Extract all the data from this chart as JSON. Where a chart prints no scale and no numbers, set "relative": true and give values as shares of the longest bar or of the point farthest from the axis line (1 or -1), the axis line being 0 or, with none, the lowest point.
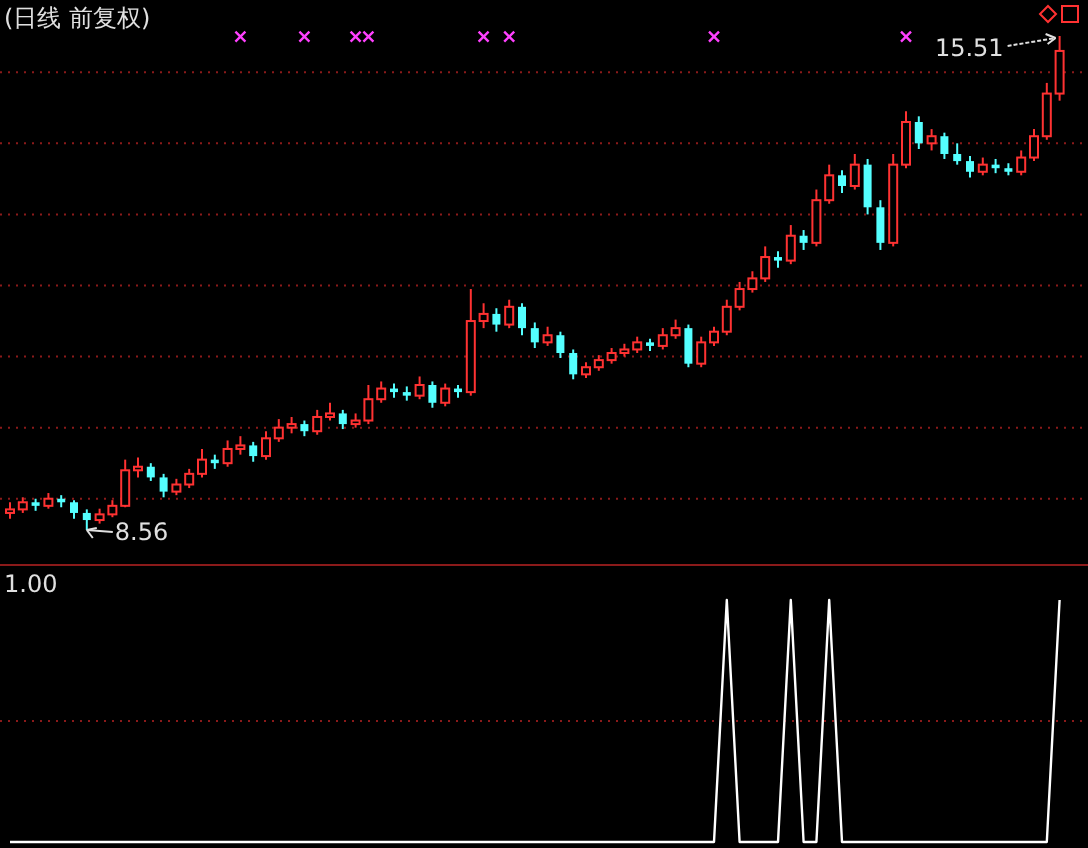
{
  "chart_data": [
    {
      "type": "candlestick",
      "title": "(日线 前复权)",
      "grid": true,
      "yticks": [
        {
          "value": 9,
          "label": null
        },
        {
          "value": 10,
          "label": null
        },
        {
          "value": 11,
          "label": null
        },
        {
          "value": 12,
          "label": null
        },
        {
          "value": 13,
          "label": null
        },
        {
          "value": 14,
          "label": null
        },
        {
          "value": 15,
          "label": null
        }
      ],
      "categories": [
        null,
        null,
        null,
        null,
        null,
        null,
        null,
        null,
        null,
        null,
        null,
        null,
        null,
        null,
        null,
        null,
        null,
        null,
        null,
        null,
        null,
        null,
        null,
        null,
        null,
        null,
        null,
        null,
        null,
        null,
        null,
        null,
        null,
        null,
        null,
        null,
        null,
        null,
        null,
        null,
        null,
        null,
        null,
        null,
        null,
        null,
        null,
        null,
        null,
        null,
        null,
        null,
        null,
        null,
        null,
        null,
        null,
        null,
        null,
        null,
        null,
        null,
        null,
        null,
        null,
        null,
        null,
        null,
        null,
        null,
        null,
        null,
        null,
        null,
        null,
        null,
        null,
        null,
        null,
        null,
        null,
        null,
        null
      ],
      "ohlc": [
        [
          8.8,
          8.95,
          8.72,
          8.85
        ],
        [
          8.85,
          9.02,
          8.8,
          8.95
        ],
        [
          8.95,
          9.0,
          8.83,
          8.9
        ],
        [
          8.9,
          9.08,
          8.86,
          9.0
        ],
        [
          9.0,
          9.05,
          8.88,
          8.95
        ],
        [
          8.95,
          8.98,
          8.72,
          8.8
        ],
        [
          8.8,
          8.85,
          8.56,
          8.7
        ],
        [
          8.7,
          8.86,
          8.65,
          8.78
        ],
        [
          8.78,
          8.98,
          8.74,
          8.9
        ],
        [
          8.9,
          9.55,
          8.88,
          9.4
        ],
        [
          9.4,
          9.58,
          9.3,
          9.45
        ],
        [
          9.45,
          9.5,
          9.25,
          9.3
        ],
        [
          9.3,
          9.35,
          9.02,
          9.1
        ],
        [
          9.1,
          9.28,
          9.05,
          9.2
        ],
        [
          9.2,
          9.42,
          9.15,
          9.35
        ],
        [
          9.35,
          9.7,
          9.3,
          9.55
        ],
        [
          9.55,
          9.62,
          9.42,
          9.5
        ],
        [
          9.5,
          9.82,
          9.45,
          9.7
        ],
        [
          9.7,
          9.88,
          9.62,
          9.75
        ],
        [
          9.75,
          9.8,
          9.52,
          9.6
        ],
        [
          9.6,
          9.95,
          9.55,
          9.85
        ],
        [
          9.85,
          10.12,
          9.8,
          10.0
        ],
        [
          10.0,
          10.15,
          9.92,
          10.05
        ],
        [
          10.05,
          10.1,
          9.88,
          9.95
        ],
        [
          9.95,
          10.25,
          9.9,
          10.15
        ],
        [
          10.15,
          10.35,
          10.1,
          10.2
        ],
        [
          10.2,
          10.25,
          9.98,
          10.05
        ],
        [
          10.05,
          10.2,
          10.0,
          10.1
        ],
        [
          10.1,
          10.6,
          10.05,
          10.4
        ],
        [
          10.4,
          10.65,
          10.35,
          10.55
        ],
        [
          10.55,
          10.62,
          10.42,
          10.5
        ],
        [
          10.5,
          10.58,
          10.38,
          10.45
        ],
        [
          10.45,
          10.72,
          10.4,
          10.6
        ],
        [
          10.6,
          10.65,
          10.28,
          10.35
        ],
        [
          10.35,
          10.62,
          10.3,
          10.55
        ],
        [
          10.55,
          10.6,
          10.42,
          10.5
        ],
        [
          10.5,
          11.95,
          10.45,
          11.5
        ],
        [
          11.5,
          11.75,
          11.4,
          11.6
        ],
        [
          11.6,
          11.68,
          11.35,
          11.45
        ],
        [
          11.45,
          11.8,
          11.4,
          11.7
        ],
        [
          11.7,
          11.75,
          11.3,
          11.4
        ],
        [
          11.4,
          11.48,
          11.12,
          11.2
        ],
        [
          11.2,
          11.42,
          11.15,
          11.3
        ],
        [
          11.3,
          11.35,
          10.98,
          11.05
        ],
        [
          11.05,
          11.1,
          10.68,
          10.75
        ],
        [
          10.75,
          10.92,
          10.7,
          10.85
        ],
        [
          10.85,
          11.02,
          10.8,
          10.95
        ],
        [
          10.95,
          11.12,
          10.9,
          11.05
        ],
        [
          11.05,
          11.18,
          11.0,
          11.1
        ],
        [
          11.1,
          11.28,
          11.05,
          11.2
        ],
        [
          11.2,
          11.25,
          11.08,
          11.15
        ],
        [
          11.15,
          11.4,
          11.1,
          11.3
        ],
        [
          11.3,
          11.52,
          11.25,
          11.4
        ],
        [
          11.4,
          11.45,
          10.85,
          10.9
        ],
        [
          10.9,
          11.28,
          10.85,
          11.2
        ],
        [
          11.2,
          11.42,
          11.15,
          11.35
        ],
        [
          11.35,
          11.8,
          11.3,
          11.7
        ],
        [
          11.7,
          12.05,
          11.65,
          11.95
        ],
        [
          11.95,
          12.2,
          11.9,
          12.1
        ],
        [
          12.1,
          12.55,
          12.05,
          12.4
        ],
        [
          12.4,
          12.48,
          12.25,
          12.35
        ],
        [
          12.35,
          12.85,
          12.3,
          12.7
        ],
        [
          12.7,
          12.78,
          12.5,
          12.6
        ],
        [
          12.6,
          13.35,
          12.55,
          13.2
        ],
        [
          13.2,
          13.7,
          13.15,
          13.55
        ],
        [
          13.55,
          13.62,
          13.3,
          13.4
        ],
        [
          13.4,
          13.85,
          13.35,
          13.7
        ],
        [
          13.7,
          13.78,
          13.0,
          13.1
        ],
        [
          13.1,
          13.2,
          12.5,
          12.6
        ],
        [
          12.6,
          13.85,
          12.55,
          13.7
        ],
        [
          13.7,
          14.45,
          13.65,
          14.3
        ],
        [
          14.3,
          14.38,
          13.92,
          14.0
        ],
        [
          14.0,
          14.2,
          13.9,
          14.1
        ],
        [
          14.1,
          14.15,
          13.78,
          13.85
        ],
        [
          13.85,
          14.0,
          13.7,
          13.75
        ],
        [
          13.75,
          13.82,
          13.52,
          13.6
        ],
        [
          13.6,
          13.8,
          13.55,
          13.7
        ],
        [
          13.7,
          13.78,
          13.58,
          13.65
        ],
        [
          13.65,
          13.72,
          13.55,
          13.6
        ],
        [
          13.6,
          13.9,
          13.55,
          13.8
        ],
        [
          13.8,
          14.2,
          13.75,
          14.1
        ],
        [
          14.1,
          14.85,
          14.05,
          14.7
        ],
        [
          14.7,
          15.51,
          14.6,
          15.3
        ]
      ],
      "colors": [
        "#ff3232",
        "#ff3232",
        "#54ffff",
        "#ff3232",
        "#54ffff",
        "#54ffff",
        "#54ffff",
        "#ff3232",
        "#ff3232",
        "#ff3232",
        "#ff3232",
        "#54ffff",
        "#54ffff",
        "#ff3232",
        "#ff3232",
        "#ff3232",
        "#54ffff",
        "#ff3232",
        "#ff3232",
        "#54ffff",
        "#ff3232",
        "#ff3232",
        "#ff3232",
        "#54ffff",
        "#ff3232",
        "#ff3232",
        "#54ffff",
        "#ff3232",
        "#ff3232",
        "#ff3232",
        "#54ffff",
        "#54ffff",
        "#ff3232",
        "#54ffff",
        "#ff3232",
        "#54ffff",
        "#ff3232",
        "#ff3232",
        "#54ffff",
        "#ff3232",
        "#54ffff",
        "#54ffff",
        "#ff3232",
        "#54ffff",
        "#54ffff",
        "#ff3232",
        "#ff3232",
        "#ff3232",
        "#ff3232",
        "#ff3232",
        "#54ffff",
        "#ff3232",
        "#ff3232",
        "#54ffff",
        "#ff3232",
        "#ff3232",
        "#ff3232",
        "#ff3232",
        "#ff3232",
        "#ff3232",
        "#54ffff",
        "#ff3232",
        "#54ffff",
        "#ff3232",
        "#ff3232",
        "#54ffff",
        "#ff3232",
        "#54ffff",
        "#54ffff",
        "#ff3232",
        "#ff3232",
        "#54ffff",
        "#ff3232",
        "#54ffff",
        "#54ffff",
        "#54ffff",
        "#ff3232",
        "#54ffff",
        "#54ffff",
        "#ff3232",
        "#ff3232",
        "#ff3232",
        "#ff3232"
      ],
      "series": [
        {
          "type": "scatter",
          "color": "#ff40ff",
          "marker": "cross",
          "values": [
            null,
            null,
            null,
            null,
            null,
            null,
            null,
            null,
            null,
            null,
            null,
            null,
            null,
            null,
            null,
            null,
            null,
            null,
            15.5,
            null,
            null,
            null,
            null,
            15.5,
            null,
            null,
            null,
            15.5,
            15.5,
            null,
            null,
            null,
            null,
            null,
            null,
            null,
            null,
            15.5,
            null,
            15.5,
            null,
            null,
            null,
            null,
            null,
            null,
            null,
            null,
            null,
            null,
            null,
            null,
            null,
            null,
            null,
            15.5,
            null,
            null,
            null,
            null,
            null,
            null,
            null,
            null,
            null,
            null,
            null,
            null,
            null,
            null,
            15.5,
            null,
            null,
            null,
            null,
            null,
            null,
            null,
            null,
            null,
            null,
            null,
            null
          ]
        }
      ],
      "annotations": [
        "15.51",
        "8.56"
      ]
    },
    {
      "type": "line",
      "title": "1.00",
      "relative": true,
      "ref_lines": [
        {
          "axis": "y",
          "value": 0.5,
          "color": "#8b1a1a",
          "line_style": "dotted"
        }
      ],
      "categories": [
        null,
        null,
        null,
        null,
        null,
        null,
        null,
        null,
        null,
        null,
        null,
        null,
        null,
        null,
        null,
        null,
        null,
        null,
        null,
        null,
        null,
        null,
        null,
        null,
        null,
        null,
        null,
        null,
        null,
        null,
        null,
        null,
        null,
        null,
        null,
        null,
        null,
        null,
        null,
        null,
        null,
        null,
        null,
        null,
        null,
        null,
        null,
        null,
        null,
        null,
        null,
        null,
        null,
        null,
        null,
        null,
        null,
        null,
        null,
        null,
        null,
        null,
        null,
        null,
        null,
        null,
        null,
        null,
        null,
        null,
        null,
        null,
        null,
        null,
        null,
        null,
        null,
        null,
        null,
        null,
        null,
        null,
        null
      ],
      "series": [
        {
          "color": "#ffffff",
          "values": [
            0,
            0,
            0,
            0,
            0,
            0,
            0,
            0,
            0,
            0,
            0,
            0,
            0,
            0,
            0,
            0,
            0,
            0,
            0,
            0,
            0,
            0,
            0,
            0,
            0,
            0,
            0,
            0,
            0,
            0,
            0,
            0,
            0,
            0,
            0,
            0,
            0,
            0,
            0,
            0,
            0,
            0,
            0,
            0,
            0,
            0,
            0,
            0,
            0,
            0,
            0,
            0,
            0,
            0,
            0,
            0,
            1,
            0,
            0,
            0,
            0,
            1,
            0,
            0,
            1,
            0,
            0,
            0,
            0,
            0,
            0,
            0,
            0,
            0,
            0,
            0,
            0,
            0,
            0,
            0,
            0,
            0,
            1
          ]
        }
      ]
    }
  ]
}
